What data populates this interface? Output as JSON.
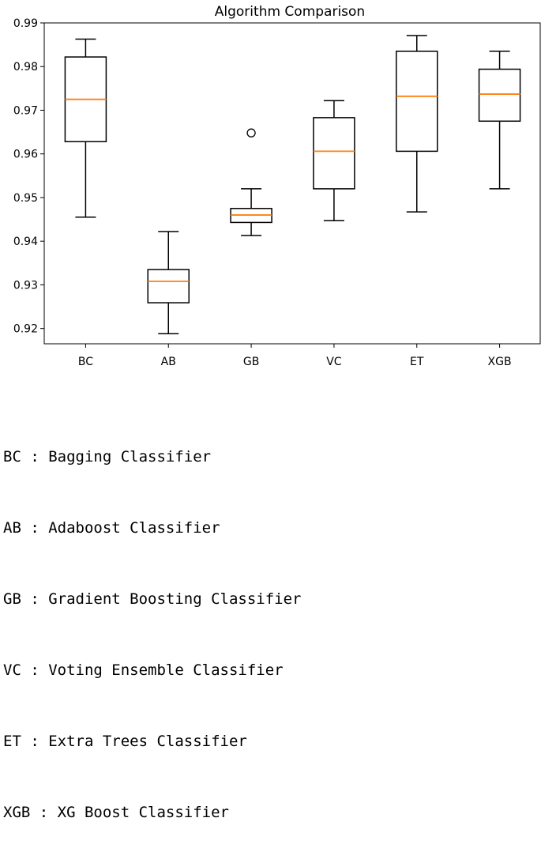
{
  "chart_data": {
    "type": "box",
    "title": "Algorithm Comparison",
    "categories": [
      "BC",
      "AB",
      "GB",
      "VC",
      "ET",
      "XGB"
    ],
    "ylim": [
      0.9165,
      0.99
    ],
    "yticks": [
      0.92,
      0.93,
      0.94,
      0.95,
      0.96,
      0.97,
      0.98,
      0.99
    ],
    "ytick_labels": [
      "0.92",
      "0.93",
      "0.94",
      "0.95",
      "0.96",
      "0.97",
      "0.98",
      "0.99"
    ],
    "grid": false,
    "box_color": "#000000",
    "median_color": "#ff7f0e",
    "series": [
      {
        "category": "BC",
        "whisker_low": 0.9455,
        "q1": 0.9628,
        "median": 0.9725,
        "q3": 0.9822,
        "whisker_high": 0.9863,
        "outliers": []
      },
      {
        "category": "AB",
        "whisker_low": 0.9188,
        "q1": 0.9259,
        "median": 0.9308,
        "q3": 0.9335,
        "whisker_high": 0.9422,
        "outliers": []
      },
      {
        "category": "GB",
        "whisker_low": 0.9413,
        "q1": 0.9443,
        "median": 0.946,
        "q3": 0.9475,
        "whisker_high": 0.952,
        "outliers": [
          0.9648
        ]
      },
      {
        "category": "VC",
        "whisker_low": 0.9447,
        "q1": 0.952,
        "median": 0.9606,
        "q3": 0.9683,
        "whisker_high": 0.9722,
        "outliers": []
      },
      {
        "category": "ET",
        "whisker_low": 0.9467,
        "q1": 0.9606,
        "median": 0.9732,
        "q3": 0.9835,
        "whisker_high": 0.9871,
        "outliers": []
      },
      {
        "category": "XGB",
        "whisker_low": 0.952,
        "q1": 0.9675,
        "median": 0.9737,
        "q3": 0.9794,
        "whisker_high": 0.9835,
        "outliers": []
      }
    ]
  },
  "legend": {
    "lines": [
      "BC : Bagging Classifier",
      "AB : Adaboost Classifier",
      "GB : Gradient Boosting Classifier",
      "VC : Voting Ensemble Classifier",
      "ET : Extra Trees Classifier",
      "XGB : XG Boost Classifier"
    ]
  }
}
